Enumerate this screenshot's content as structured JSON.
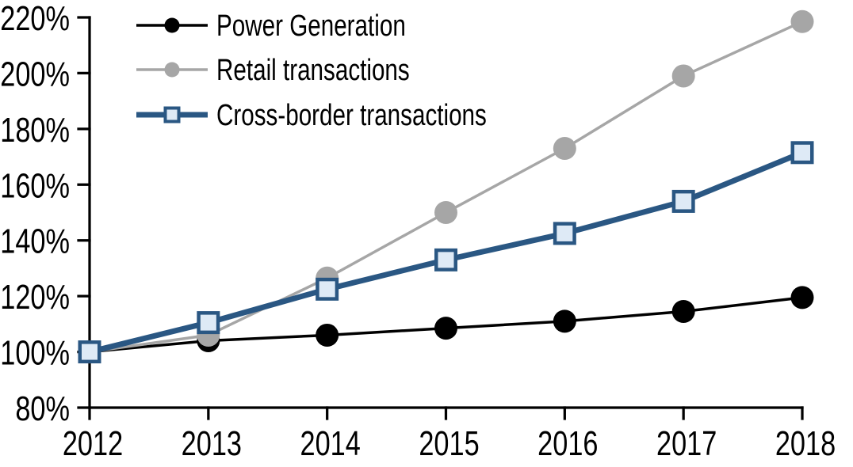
{
  "chart_data": {
    "type": "line",
    "title": "",
    "xlabel": "",
    "ylabel": "",
    "x": [
      2012,
      2013,
      2014,
      2015,
      2016,
      2017,
      2018
    ],
    "x_labels": [
      "2012",
      "2013",
      "2014",
      "2015",
      "2016",
      "2017",
      "2018"
    ],
    "y_axis": {
      "min": 80,
      "max": 220,
      "step": 20,
      "unit": "%",
      "tick_labels": [
        "80%",
        "100%",
        "120%",
        "140%",
        "160%",
        "180%",
        "200%",
        "220%"
      ]
    },
    "grid": false,
    "legend_position": "top-left",
    "background_color": "#FFFFFF",
    "axis_color": "#000000",
    "series": [
      {
        "name": "Power Generation",
        "marker": "circle",
        "line_color": "#000000",
        "marker_fill": "#000000",
        "line_width": 3.5,
        "z": 1,
        "values": [
          100,
          104,
          106,
          108.5,
          111,
          114.5,
          119.5
        ]
      },
      {
        "name": "Retail transactions",
        "marker": "circle",
        "line_color": "#A6A6A6",
        "marker_fill": "#A6A6A6",
        "line_width": 3.5,
        "z": 2,
        "values": [
          100,
          106,
          126.5,
          150,
          173,
          199,
          218.5
        ]
      },
      {
        "name": "Cross-border transactions",
        "marker": "square",
        "line_color": "#2A5783",
        "marker_fill": "#DEEAF6",
        "marker_border": "#2A5783",
        "line_width": 7,
        "z": 3,
        "values": [
          100,
          110.5,
          122.5,
          133,
          142.5,
          154,
          171.5
        ]
      }
    ]
  }
}
